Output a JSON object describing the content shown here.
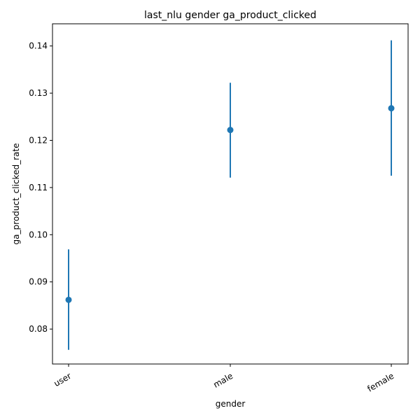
{
  "chart_data": {
    "type": "scatter",
    "title": "last_nlu gender ga_product_clicked",
    "xlabel": "gender",
    "ylabel": "ga_product_clicked_rate",
    "categories": [
      "user",
      "male",
      "female"
    ],
    "values": [
      0.0862,
      0.1222,
      0.1268
    ],
    "error_low": [
      0.0756,
      0.1121,
      0.1125
    ],
    "error_high": [
      0.0969,
      0.1322,
      0.1412
    ],
    "ylim": [
      0.0726,
      0.1447
    ],
    "yticks": [
      0.08,
      0.09,
      0.1,
      0.11,
      0.12,
      0.13,
      0.14
    ],
    "ytick_labels": [
      "0.08",
      "0.09",
      "0.10",
      "0.11",
      "0.12",
      "0.13",
      "0.14"
    ],
    "xtick_rotation": "30deg",
    "grid": false,
    "color": "#1f77b4"
  }
}
